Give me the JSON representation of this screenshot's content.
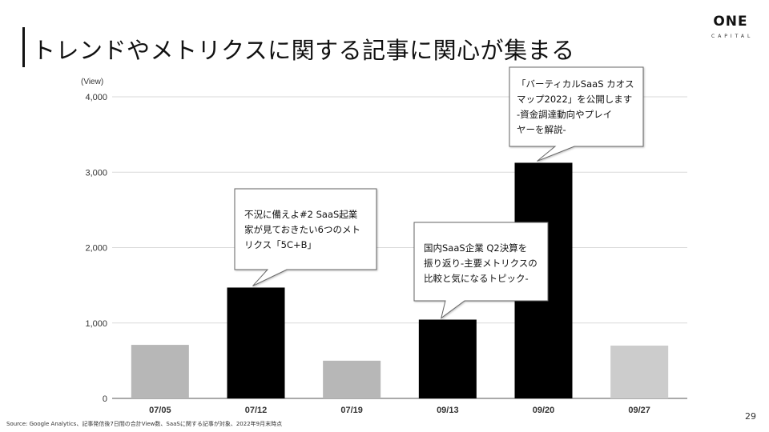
{
  "slide": {
    "title": "トレンドやメトリクスに関する記事に関心が集まる",
    "source": "Source: Google Analytics、記事発信後7日間の合計View数、SaaSに関する記事が対象、2022年9月末時点",
    "page_number": "29"
  },
  "logo": {
    "main": "ONE",
    "sub": "CAPITAL"
  },
  "chart_data": {
    "type": "bar",
    "unit_label": "(View)",
    "categories": [
      "07/05",
      "07/12",
      "07/19",
      "09/13",
      "09/20",
      "09/27"
    ],
    "values": [
      710,
      1470,
      500,
      1045,
      3125,
      700
    ],
    "ylim": [
      0,
      4000
    ],
    "yticks": [
      0,
      1000,
      2000,
      3000,
      4000
    ],
    "ytick_labels": [
      "0",
      "1,000",
      "2,000",
      "3,000",
      "4,000"
    ],
    "grid": true,
    "colors": [
      "#b7b7b7",
      "#000000",
      "#b7b7b7",
      "#000000",
      "#000000",
      "#cccccc"
    ],
    "annotations": [
      {
        "category": "07/12",
        "lines": [
          "不況に備えよ#2 SaaS起業",
          "家が見ておきたい6つのメト",
          "リクス「5C+B」"
        ]
      },
      {
        "category": "09/13",
        "lines": [
          "国内SaaS企業 Q2決算を",
          "振り返り-主要メトリクスの",
          "比較と気になるトピック-"
        ]
      },
      {
        "category": "09/20",
        "lines": [
          "「バーティカルSaaS カオス",
          "マップ2022」を公開します",
          "-資金調達動向やプレイ",
          "ヤーを解説-"
        ]
      }
    ]
  }
}
